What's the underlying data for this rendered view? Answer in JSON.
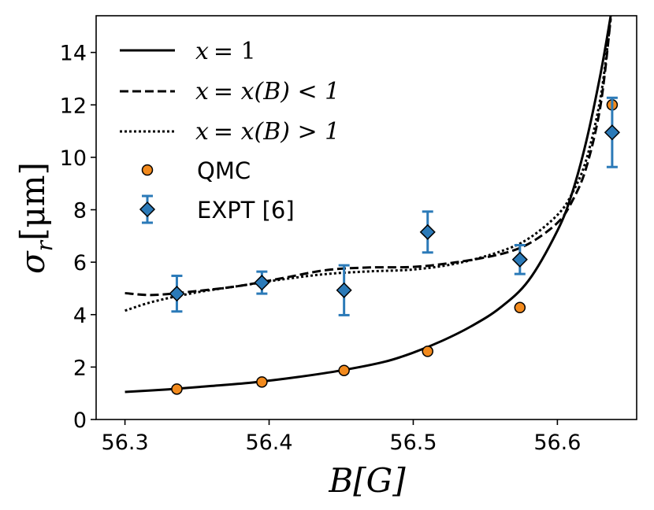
{
  "chart_data": {
    "type": "line",
    "xlabel": "B[G]",
    "ylabel": "σ_r[μm]",
    "xlim": [
      56.28,
      56.655
    ],
    "ylim": [
      0,
      15.4
    ],
    "xticks": [
      56.3,
      56.4,
      56.5,
      56.6
    ],
    "xtick_labels": [
      "56.3",
      "56.4",
      "56.5",
      "56.6"
    ],
    "yticks": [
      0,
      2,
      4,
      6,
      8,
      10,
      12,
      14
    ],
    "ytick_labels": [
      "0",
      "2",
      "4",
      "6",
      "8",
      "10",
      "12",
      "14"
    ],
    "legend_position": "top-left",
    "series": [
      {
        "name": "x = 1",
        "style": "solid",
        "color": "#000000",
        "x": [
          56.3,
          56.33,
          56.36,
          56.39,
          56.42,
          56.45,
          56.48,
          56.5,
          56.52,
          56.54,
          56.56,
          56.58,
          56.6,
          56.61,
          56.62,
          56.63,
          56.637
        ],
        "y": [
          1.05,
          1.15,
          1.28,
          1.42,
          1.62,
          1.87,
          2.2,
          2.55,
          3.0,
          3.55,
          4.25,
          5.3,
          7.2,
          8.6,
          10.6,
          13.2,
          15.4
        ]
      },
      {
        "name": "x = x(B) < 1",
        "style": "dashed",
        "color": "#000000",
        "x": [
          56.3,
          56.32,
          56.35,
          56.38,
          56.41,
          56.44,
          56.47,
          56.5,
          56.53,
          56.56,
          56.58,
          56.6,
          56.61,
          56.62,
          56.63,
          56.637
        ],
        "y": [
          4.82,
          4.75,
          4.9,
          5.1,
          5.4,
          5.7,
          5.8,
          5.82,
          6.0,
          6.3,
          6.7,
          7.5,
          8.3,
          9.6,
          12.0,
          15.3
        ]
      },
      {
        "name": "x = x(B) > 1",
        "style": "dotted",
        "color": "#000000",
        "x": [
          56.3,
          56.32,
          56.35,
          56.38,
          56.41,
          56.44,
          56.47,
          56.5,
          56.53,
          56.56,
          56.58,
          56.6,
          56.61,
          56.62,
          56.63,
          56.637
        ],
        "y": [
          4.15,
          4.5,
          4.85,
          5.1,
          5.35,
          5.55,
          5.65,
          5.72,
          5.95,
          6.4,
          6.9,
          7.8,
          8.6,
          9.9,
          12.3,
          15.3
        ]
      },
      {
        "name": "QMC",
        "style": "markers",
        "marker": "circle",
        "color": "#f28a1d",
        "x": [
          56.336,
          56.395,
          56.452,
          56.51,
          56.574,
          56.638
        ],
        "y": [
          1.16,
          1.43,
          1.87,
          2.6,
          4.27,
          12.0
        ]
      },
      {
        "name": "EXPT [6]",
        "style": "errorbar",
        "marker": "diamond",
        "color": "#2b7ab8",
        "x": [
          56.336,
          56.395,
          56.452,
          56.51,
          56.574,
          56.638
        ],
        "y": [
          4.8,
          5.22,
          4.93,
          7.15,
          6.1,
          10.95
        ],
        "yerr": [
          0.68,
          0.42,
          0.95,
          0.78,
          0.55,
          1.32
        ]
      }
    ]
  },
  "legend": {
    "solid_lhs": "x",
    "solid_rhs": "= 1",
    "dashed_lhs": "x",
    "dashed_rhs": "= x(B) < 1",
    "dotted_lhs": "x",
    "dotted_rhs": "= x(B) > 1",
    "qmc": "QMC",
    "expt": "EXPT [6]"
  },
  "axes": {
    "xlabel": "B[G]",
    "ylabel_sigma": "σ",
    "ylabel_sub": "r",
    "ylabel_unit": "[μm]"
  }
}
